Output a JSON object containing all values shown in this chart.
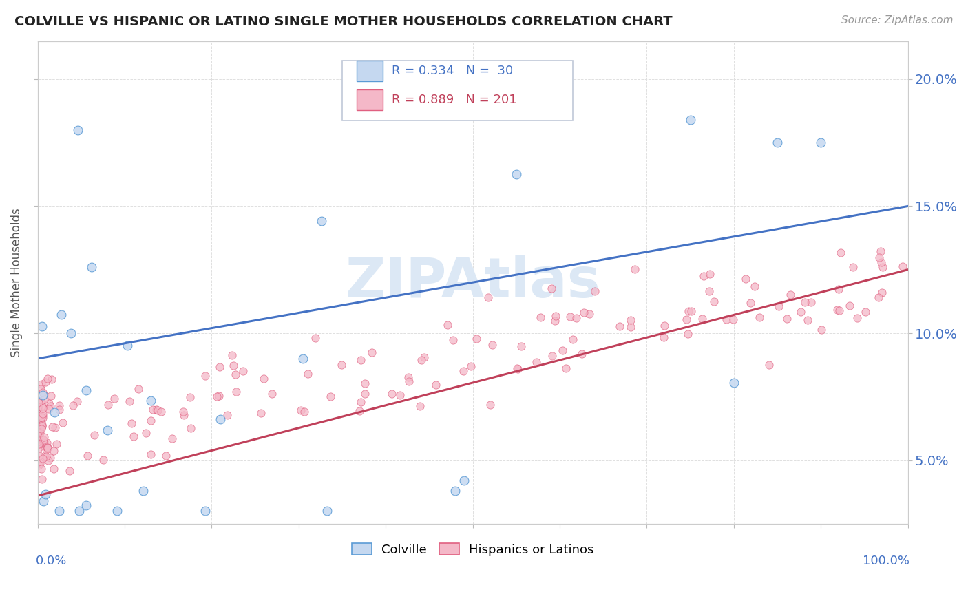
{
  "title": "COLVILLE VS HISPANIC OR LATINO SINGLE MOTHER HOUSEHOLDS CORRELATION CHART",
  "source": "Source: ZipAtlas.com",
  "ylabel": "Single Mother Households",
  "y_tick_labels": [
    "5.0%",
    "10.0%",
    "15.0%",
    "20.0%"
  ],
  "y_ticks": [
    0.05,
    0.1,
    0.15,
    0.2
  ],
  "legend_r1": "R = 0.334",
  "legend_n1": "N =  30",
  "legend_r2": "R = 0.889",
  "legend_n2": "N = 201",
  "color_blue_fill": "#c5d8f0",
  "color_blue_edge": "#5b9bd5",
  "color_blue_line": "#4472c4",
  "color_pink_fill": "#f4b8c8",
  "color_pink_edge": "#e06080",
  "color_pink_line": "#c0405a",
  "color_legend_value": "#4472c4",
  "watermark_color": "#dce8f5",
  "background_color": "#ffffff",
  "grid_color": "#e0e0e0",
  "blue_line_y0": 0.09,
  "blue_line_y1": 0.15,
  "pink_line_y0": 0.036,
  "pink_line_y1": 0.125,
  "ylim_low": 0.025,
  "ylim_high": 0.215,
  "xlim_low": 0.0,
  "xlim_high": 1.0
}
